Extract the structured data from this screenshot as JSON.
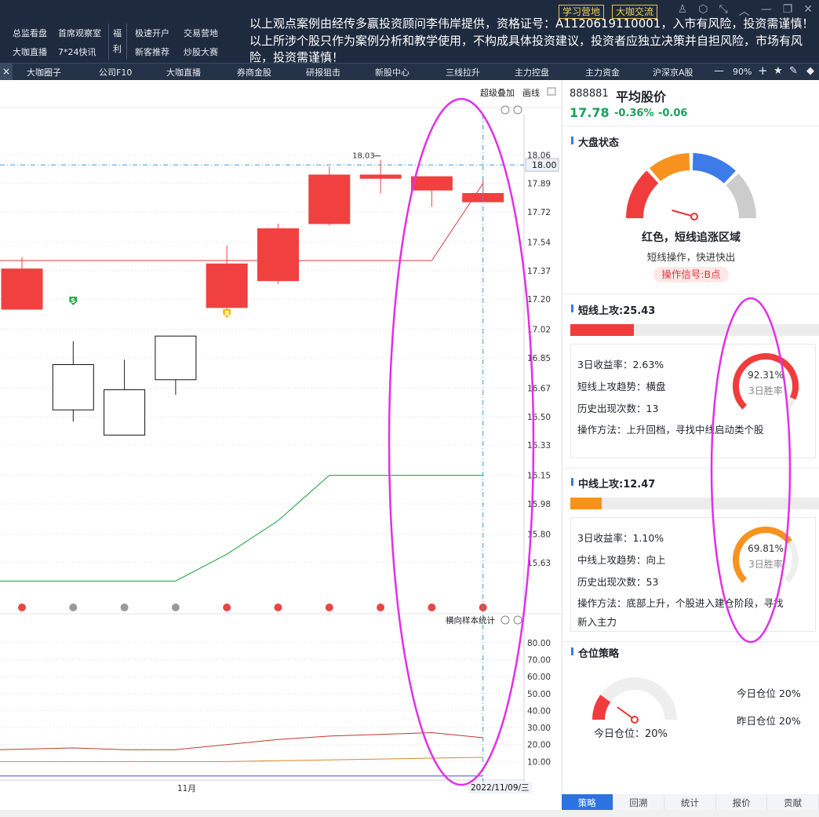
{
  "topbar": {
    "menu": [
      {
        "label": "总监看盘",
        "col": 0,
        "row": 0
      },
      {
        "label": "首席观察室",
        "col": 1,
        "row": 0
      },
      {
        "label": "大咖直播",
        "col": 0,
        "row": 1
      },
      {
        "label": "7*24快讯",
        "col": 1,
        "row": 1
      },
      {
        "label": "极速开户",
        "col": 2,
        "row": 0
      },
      {
        "label": "交易营地",
        "col": 3,
        "row": 0
      },
      {
        "label": "新客推荐",
        "col": 2,
        "row": 1
      },
      {
        "label": "炒股大赛",
        "col": 3,
        "row": 1
      }
    ],
    "fuli": [
      "福",
      "利"
    ],
    "tag1": "学习营地",
    "tag2": "大咖交流",
    "notice": "以上观点案例由经传多赢投资顾问李伟岸提供，资格证号：A1120619110001，入市有风险，投资需谨慎！以上所涉个股只作为案例分析和教学使用，不构成具体投资建议，投资者应独立决策并自担风险，市场有风险，投资需谨慎！"
  },
  "tabs": [
    "大咖圈子",
    "公司F10",
    "大咖直播",
    "券商金股",
    "研报狙击",
    "新股中心",
    "三线拉升",
    "主力控盘",
    "主力资金",
    "沪深京A股"
  ],
  "tab_controls": {
    "close": "×",
    "minus": "—",
    "zoom": "90%",
    "plus": "+"
  },
  "chart_header": {
    "overlay": "超级叠加",
    "draw": "画线",
    "stats": "横向样本统计"
  },
  "crosshair_price": "18.00",
  "crosshair_date": "2022/11/09/三",
  "high_label": "18.03",
  "month_label": "11月",
  "chart_data": {
    "type": "candlestick",
    "price_axis": {
      "ticks": [
        "18.06",
        "17.89",
        "17.72",
        "17.54",
        "17.37",
        "17.20",
        "17.02",
        "16.85",
        "16.67",
        "16.50",
        "16.33",
        "16.15",
        "15.98",
        "15.80",
        "15.63"
      ],
      "range": [
        15.4,
        18.3
      ]
    },
    "candles": [
      {
        "open": 17.14,
        "close": 17.38,
        "high": 17.45,
        "low": 17.14,
        "bull": true
      },
      {
        "open": 16.81,
        "close": 16.54,
        "high": 16.95,
        "low": 16.47,
        "bull": false
      },
      {
        "open": 16.66,
        "close": 16.39,
        "high": 16.84,
        "low": 16.39,
        "bull": false
      },
      {
        "open": 16.72,
        "close": 16.98,
        "high": 16.98,
        "low": 16.63,
        "bull": false
      },
      {
        "open": 17.15,
        "close": 17.41,
        "high": 17.52,
        "low": 17.09,
        "bull": true
      },
      {
        "open": 17.31,
        "close": 17.62,
        "high": 17.65,
        "low": 17.29,
        "bull": true
      },
      {
        "open": 17.65,
        "close": 17.94,
        "high": 17.99,
        "low": 17.64,
        "bull": true
      },
      {
        "open": 17.94,
        "close": 17.92,
        "high": 18.03,
        "low": 17.83,
        "bull": true
      },
      {
        "open": 17.93,
        "close": 17.85,
        "high": 17.93,
        "low": 17.75,
        "bull": true
      },
      {
        "open": 17.83,
        "close": 17.78,
        "high": 17.92,
        "low": 17.78,
        "bull": true
      }
    ],
    "red_line": [
      17.43,
      17.43,
      17.43,
      17.43,
      17.43,
      17.43,
      17.43,
      17.43,
      17.43,
      17.89
    ],
    "green_line": [
      15.52,
      15.52,
      15.52,
      15.52,
      15.68,
      15.88,
      16.15,
      16.15,
      16.15,
      16.15
    ],
    "dot_colors": [
      "#e84545",
      "#999999",
      "#999999",
      "#999999",
      "#e84545",
      "#e84545",
      "#e84545",
      "#e84545",
      "#e84545",
      "#e84545"
    ],
    "signals": [
      {
        "index": 1,
        "label": "S",
        "color": "#1db04a"
      },
      {
        "index": 4,
        "label": "B",
        "color": "#f5b800"
      }
    ],
    "lower_axis": {
      "ticks": [
        "80.00",
        "70.00",
        "60.00",
        "50.00",
        "40.00",
        "30.00",
        "20.00",
        "10.00"
      ],
      "range": [
        0,
        85
      ]
    },
    "lower_series": [
      {
        "color": "#c0392b",
        "values": [
          17,
          18,
          17,
          17,
          20,
          23,
          25,
          26,
          27,
          24
        ]
      },
      {
        "color": "#d08a2a",
        "values": [
          10,
          10,
          10,
          10,
          10,
          10.5,
          11,
          11.5,
          12,
          12.5
        ]
      },
      {
        "color": "#4b4bc8",
        "values": [
          1.5,
          1.5,
          1.5,
          1.5,
          1.5,
          1.5,
          1.5,
          1.5,
          1.5,
          1.5
        ]
      }
    ]
  },
  "stock": {
    "code": "888881",
    "name": "平均股价",
    "price": "17.78",
    "change_pct": "-0.36%",
    "change": "-0.06"
  },
  "market_state": {
    "title": "大盘状态",
    "status": "红色，短线追涨区域",
    "advice": "短线操作，快进快出",
    "signal": "操作信号:B点",
    "level": 0.08,
    "colors": [
      "#f03c3c",
      "#f7921e",
      "#3c7be8",
      "#cccccc"
    ]
  },
  "short": {
    "title": "短线上攻:25.43",
    "bar": 0.2543,
    "color": "#f03c3c",
    "pct": "92.31%",
    "pct_value": 0.9231,
    "pct_label": "3日胜率",
    "lines": [
      "3日收益率：2.63%",
      "短线上攻趋势：横盘",
      "历史出现次数：13",
      "操作方法：上升回档，寻找中线启动类个股"
    ]
  },
  "mid": {
    "title": "中线上攻:12.47",
    "bar": 0.1247,
    "color": "#f7921e",
    "pct": "69.81%",
    "pct_value": 0.6981,
    "pct_label": "3日胜率",
    "lines": [
      "3日收益率：1.10%",
      "中线上攻趋势：向上",
      "历史出现次数：53",
      "操作方法：底部上升，个股进入建仓阶段，寻找",
      "新入主力"
    ]
  },
  "position": {
    "title": "仓位策略",
    "today_label": "今日仓位：20%",
    "today": "今日仓位  20%",
    "yesterday": "昨日仓位  20%",
    "level": 0.2
  },
  "bottom_tabs": [
    "策略",
    "回溯",
    "统计",
    "报价",
    "贡献"
  ]
}
